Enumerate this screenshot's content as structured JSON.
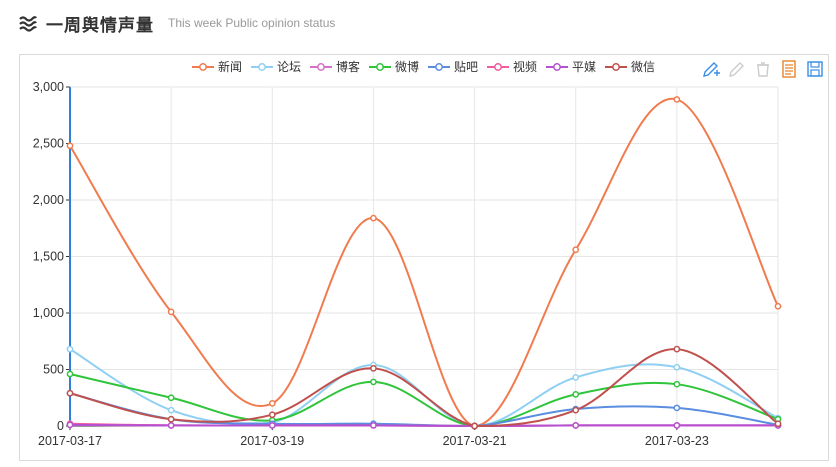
{
  "header": {
    "title": "一周舆情声量",
    "subtitle": "This week Public opinion status"
  },
  "toolbox": {
    "items": [
      {
        "name": "draw-pen-add-icon",
        "color": "#3a8ee6"
      },
      {
        "name": "draw-pen-icon",
        "color": "#cccccc"
      },
      {
        "name": "eraser-icon",
        "color": "#cccccc"
      },
      {
        "name": "data-view-icon",
        "color": "#e8842c"
      },
      {
        "name": "save-image-icon",
        "color": "#3a8ee6"
      }
    ]
  },
  "chart_data": {
    "type": "line",
    "smooth": true,
    "legend_position": "top-center",
    "grid": true,
    "x": [
      "2017-03-17",
      "2017-03-18",
      "2017-03-19",
      "2017-03-20",
      "2017-03-21",
      "2017-03-22",
      "2017-03-23",
      "2017-03-24"
    ],
    "x_tick_labels": [
      "2017-03-17",
      "2017-03-19",
      "2017-03-21",
      "2017-03-23"
    ],
    "ylim": [
      0,
      3000
    ],
    "y_ticks": [
      "0",
      "500",
      "1,000",
      "1,500",
      "2,000",
      "2,500",
      "3,000"
    ],
    "y_tick_values": [
      0,
      500,
      1000,
      1500,
      2000,
      2500,
      3000
    ],
    "series": [
      {
        "name": "新闻",
        "color": "#f07b4e",
        "values": [
          2480,
          1010,
          200,
          1840,
          0,
          1560,
          2890,
          1060
        ]
      },
      {
        "name": "论坛",
        "color": "#8fd0f2",
        "values": [
          680,
          140,
          30,
          540,
          0,
          430,
          520,
          70
        ]
      },
      {
        "name": "博客",
        "color": "#d66fc5",
        "values": [
          10,
          5,
          5,
          8,
          0,
          5,
          5,
          5
        ]
      },
      {
        "name": "微博",
        "color": "#2fc43a",
        "values": [
          460,
          250,
          50,
          390,
          0,
          280,
          370,
          60
        ]
      },
      {
        "name": "贴吧",
        "color": "#5b8de0",
        "values": [
          290,
          60,
          20,
          20,
          0,
          150,
          160,
          10
        ]
      },
      {
        "name": "视频",
        "color": "#f05ca0",
        "values": [
          20,
          5,
          5,
          5,
          0,
          5,
          5,
          5
        ]
      },
      {
        "name": "平媒",
        "color": "#b551d1",
        "values": [
          10,
          5,
          5,
          5,
          0,
          5,
          5,
          5
        ]
      },
      {
        "name": "微信",
        "color": "#c0504d",
        "values": [
          290,
          60,
          100,
          510,
          0,
          140,
          680,
          20
        ]
      }
    ]
  }
}
